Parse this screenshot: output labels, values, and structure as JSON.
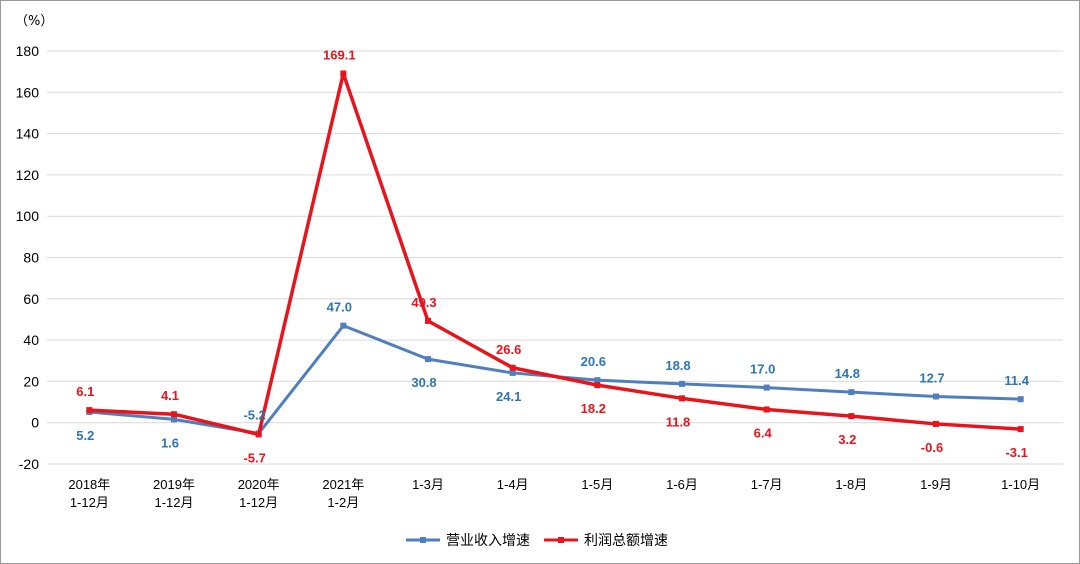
{
  "chart_data": {
    "type": "line",
    "unit_label": "（%）",
    "categories": [
      [
        "2018年",
        "1-12月"
      ],
      [
        "2019年",
        "1-12月"
      ],
      [
        "2020年",
        "1-12月"
      ],
      [
        "2021年",
        "1-2月"
      ],
      [
        "1-3月"
      ],
      [
        "1-4月"
      ],
      [
        "1-5月"
      ],
      [
        "1-6月"
      ],
      [
        "1-7月"
      ],
      [
        "1-8月"
      ],
      [
        "1-9月"
      ],
      [
        "1-10月"
      ]
    ],
    "ylim": [
      -20,
      180
    ],
    "yticks": [
      -20,
      0,
      20,
      40,
      60,
      80,
      100,
      120,
      140,
      160,
      180
    ],
    "grid": true,
    "legend_position": "bottom-center",
    "series": [
      {
        "name": "营业收入增速",
        "color": "#4f7fbf",
        "label_color": "#2e75b6",
        "values": [
          5.2,
          1.6,
          -5.2,
          47.0,
          30.8,
          24.1,
          20.6,
          18.8,
          17.0,
          14.8,
          12.7,
          11.4
        ],
        "labels": [
          "5.2",
          "1.6",
          "-5.2",
          "47.0",
          "30.8",
          "24.1",
          "20.6",
          "18.8",
          "17.0",
          "14.8",
          "12.7",
          "11.4"
        ]
      },
      {
        "name": "利润总额增速",
        "color": "#e8141c",
        "label_color": "#e8141c",
        "values": [
          6.1,
          4.1,
          -5.7,
          169.1,
          49.3,
          26.6,
          18.2,
          11.8,
          6.4,
          3.2,
          -0.6,
          -3.1
        ],
        "labels": [
          "6.1",
          "4.1",
          "-5.7",
          "169.1",
          "49.3",
          "26.6",
          "18.2",
          "11.8",
          "6.4",
          "3.2",
          "-0.6",
          "-3.1"
        ]
      }
    ]
  }
}
